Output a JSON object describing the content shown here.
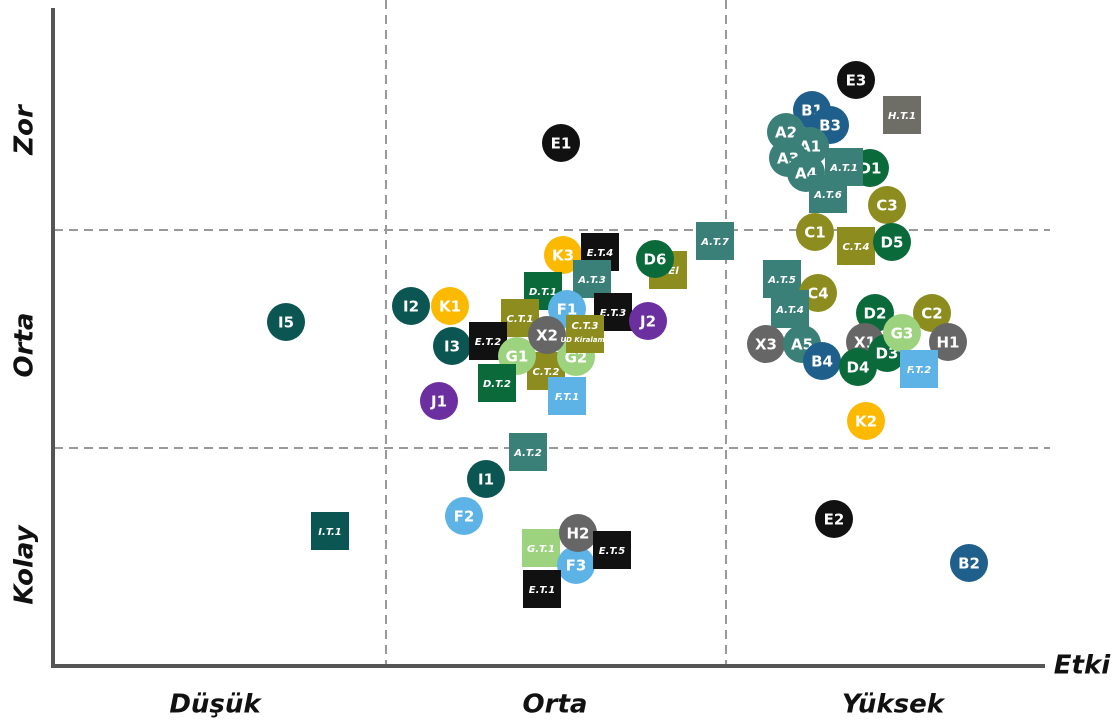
{
  "axes": {
    "x_title": "Etki",
    "x_levels": [
      "Düşük",
      "Orta",
      "Yüksek"
    ],
    "y_levels": [
      "Zor",
      "Orta",
      "Kolay"
    ]
  },
  "nodes": [
    {
      "label": "I5",
      "shape": "circle",
      "color": "#0b5552"
    },
    {
      "label": "I.T.1",
      "shape": "square",
      "color": "#0b5552"
    },
    {
      "label": "E1",
      "shape": "circle",
      "color": "#111111"
    },
    {
      "label": "A.T.7",
      "shape": "square",
      "color": "#3b8078"
    },
    {
      "label": "Z.El",
      "shape": "square",
      "color": "#8c8c1f"
    },
    {
      "label": "D6",
      "shape": "circle",
      "color": "#0a6a3a"
    },
    {
      "label": "K3",
      "shape": "circle",
      "color": "#fbb900"
    },
    {
      "label": "E.T.4",
      "shape": "square",
      "color": "#111111"
    },
    {
      "label": "A.T.3",
      "shape": "square",
      "color": "#3b8078"
    },
    {
      "label": "D.T.1",
      "shape": "square",
      "color": "#0a6a3a"
    },
    {
      "label": "F1",
      "shape": "circle",
      "color": "#5db3e6"
    },
    {
      "label": "E.T.3",
      "shape": "square",
      "color": "#111111"
    },
    {
      "label": "J2",
      "shape": "circle",
      "color": "#6b2fa0"
    },
    {
      "label": "C.T.1",
      "shape": "square",
      "color": "#8c8c1f"
    },
    {
      "label": "I2",
      "shape": "circle",
      "color": "#0b5552"
    },
    {
      "label": "K1",
      "shape": "circle",
      "color": "#fbb900"
    },
    {
      "label": "I3",
      "shape": "circle",
      "color": "#0b5552"
    },
    {
      "label": "E.T.2",
      "shape": "square",
      "color": "#111111"
    },
    {
      "label": "C.T.2",
      "shape": "square",
      "color": "#8c8c1f"
    },
    {
      "label": "G1",
      "shape": "circle",
      "color": "#9dd37e"
    },
    {
      "label": "G2",
      "shape": "circle",
      "color": "#9dd37e"
    },
    {
      "label": "X2",
      "shape": "circle",
      "color": "#666666"
    },
    {
      "label": "C.T.3",
      "sublabel": "UD Kiralama",
      "shape": "square",
      "color": "#8c8c1f"
    },
    {
      "label": "D.T.2",
      "shape": "square",
      "color": "#0a6a3a"
    },
    {
      "label": "F.T.1",
      "shape": "square",
      "color": "#5db3e6"
    },
    {
      "label": "J1",
      "shape": "circle",
      "color": "#6b2fa0"
    },
    {
      "label": "A.T.2",
      "shape": "square",
      "color": "#3b8078"
    },
    {
      "label": "I1",
      "shape": "circle",
      "color": "#0b5552"
    },
    {
      "label": "F2",
      "shape": "circle",
      "color": "#5db3e6"
    },
    {
      "label": "G.T.1",
      "shape": "square",
      "color": "#9dd37e"
    },
    {
      "label": "F3",
      "shape": "circle",
      "color": "#5db3e6"
    },
    {
      "label": "H2",
      "shape": "circle",
      "color": "#666666"
    },
    {
      "label": "E.T.5",
      "shape": "square",
      "color": "#111111"
    },
    {
      "label": "E.T.1",
      "shape": "square",
      "color": "#111111"
    },
    {
      "label": "E3",
      "shape": "circle",
      "color": "#111111"
    },
    {
      "label": "H.T.1",
      "shape": "square",
      "color": "#6e6e66"
    },
    {
      "label": "B1",
      "shape": "circle",
      "color": "#1f5f8b"
    },
    {
      "label": "B3",
      "shape": "circle",
      "color": "#1f5f8b"
    },
    {
      "label": "A2",
      "shape": "circle",
      "color": "#3b8078"
    },
    {
      "label": "A1",
      "shape": "circle",
      "color": "#3b8078"
    },
    {
      "label": "A3",
      "shape": "circle",
      "color": "#3b8078"
    },
    {
      "label": "D1",
      "shape": "circle",
      "color": "#0a6a3a"
    },
    {
      "label": "A4",
      "shape": "circle",
      "color": "#3b8078"
    },
    {
      "label": "A.T.1",
      "shape": "square",
      "color": "#3b8078"
    },
    {
      "label": "A.T.6",
      "shape": "square",
      "color": "#3b8078"
    },
    {
      "label": "C3",
      "shape": "circle",
      "color": "#8c8c1f"
    },
    {
      "label": "C1",
      "shape": "circle",
      "color": "#8c8c1f"
    },
    {
      "label": "C.T.4",
      "shape": "square",
      "color": "#8c8c1f"
    },
    {
      "label": "D5",
      "shape": "circle",
      "color": "#0a6a3a"
    },
    {
      "label": "A.T.5",
      "shape": "square",
      "color": "#3b8078"
    },
    {
      "label": "C4",
      "shape": "circle",
      "color": "#8c8c1f"
    },
    {
      "label": "A.T.4",
      "shape": "square",
      "color": "#3b8078"
    },
    {
      "label": "X3",
      "shape": "circle",
      "color": "#666666"
    },
    {
      "label": "A5",
      "shape": "circle",
      "color": "#3b8078"
    },
    {
      "label": "B4",
      "shape": "circle",
      "color": "#1f5f8b"
    },
    {
      "label": "D2",
      "shape": "circle",
      "color": "#0a6a3a"
    },
    {
      "label": "C2",
      "shape": "circle",
      "color": "#8c8c1f"
    },
    {
      "label": "X1",
      "shape": "circle",
      "color": "#666666"
    },
    {
      "label": "D3",
      "shape": "circle",
      "color": "#0a6a3a"
    },
    {
      "label": "G3",
      "shape": "circle",
      "color": "#9dd37e"
    },
    {
      "label": "H1",
      "shape": "circle",
      "color": "#666666"
    },
    {
      "label": "D4",
      "shape": "circle",
      "color": "#0a6a3a"
    },
    {
      "label": "F.T.2",
      "shape": "square",
      "color": "#5db3e6"
    },
    {
      "label": "K2",
      "shape": "circle",
      "color": "#fbb900"
    },
    {
      "label": "E2",
      "shape": "circle",
      "color": "#111111"
    },
    {
      "label": "B2",
      "shape": "circle",
      "color": "#1f5f8b"
    }
  ]
}
